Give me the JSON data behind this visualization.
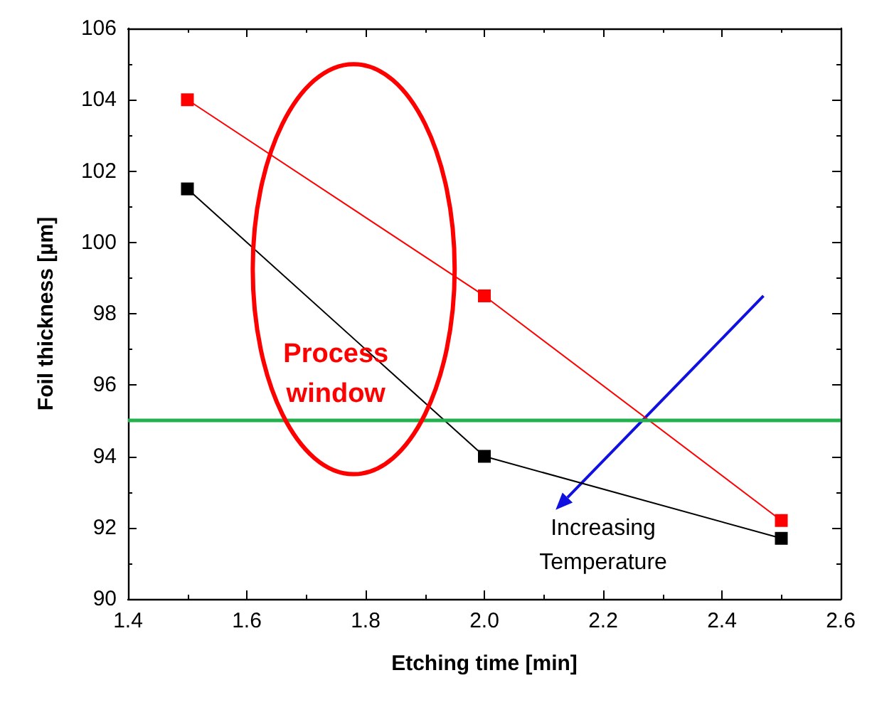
{
  "chart_data": {
    "type": "line",
    "xlabel": "Etching time [min]",
    "ylabel": "Foil thickness [µm]",
    "x": [
      1.5,
      2.0,
      2.5
    ],
    "series": [
      {
        "color": "#ff0000",
        "values": [
          104,
          98.5,
          92.2
        ]
      },
      {
        "color": "#000000",
        "values": [
          101.5,
          94,
          91.7
        ]
      }
    ],
    "xlim": [
      1.4,
      2.6
    ],
    "xticks": [
      1.4,
      1.6,
      1.8,
      {
        "value": 2,
        "label": "2.0"
      },
      2.2,
      2.4,
      2.6
    ],
    "ylim": [
      90,
      106
    ],
    "yticks": [
      90,
      92,
      94,
      96,
      98,
      100,
      102,
      104,
      106
    ],
    "ref_lines": [
      {
        "axis": "y",
        "value": 95,
        "color": "#22b14c"
      }
    ],
    "annotations": [
      "Process\nwindow",
      "Increasing\nTemperature"
    ],
    "marker": "square",
    "line_style": "solid",
    "grid": false
  }
}
